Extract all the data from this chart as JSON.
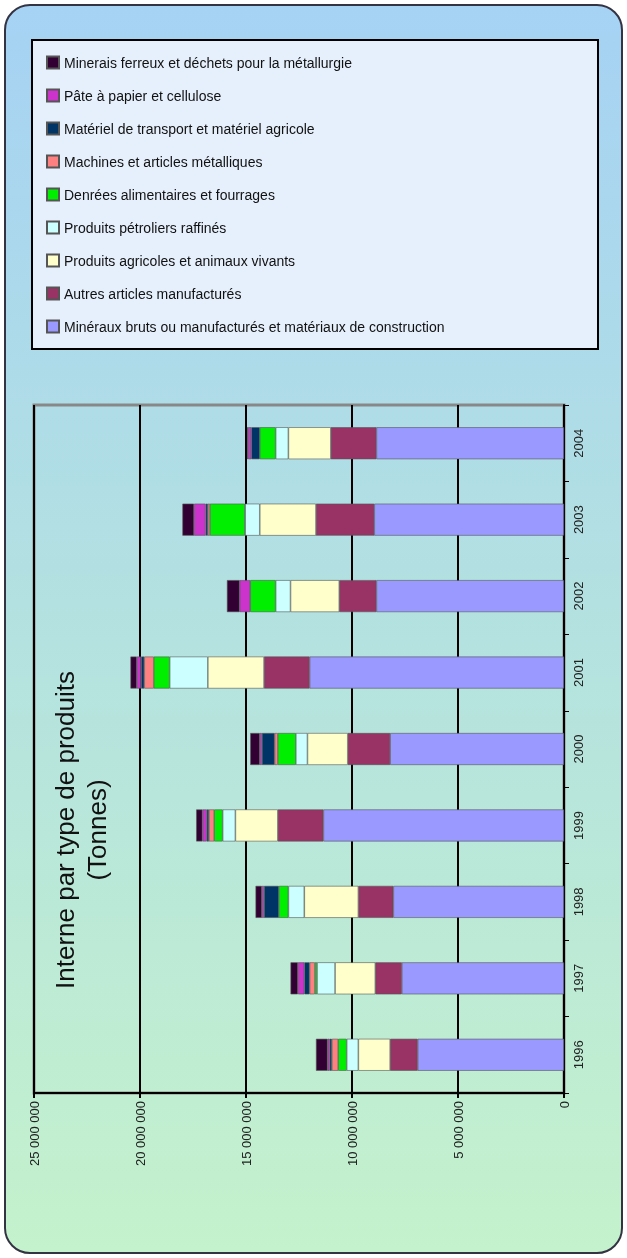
{
  "chart_data": {
    "type": "bar",
    "orientation": "horizontal",
    "title": "Interne par type de produits\n(Tonnes)",
    "stacked": true,
    "grid": "x",
    "legend": "top",
    "categories": [
      "2004",
      "2003",
      "2002",
      "2001",
      "2000",
      "1999",
      "1998",
      "1997",
      "1996"
    ],
    "xlim": [
      25000000,
      0
    ],
    "xticks": [
      {
        "value": 25000000,
        "label": "25 000 000"
      },
      {
        "value": 20000000,
        "label": "20 000 000"
      },
      {
        "value": 15000000,
        "label": "15 000 000"
      },
      {
        "value": 10000000,
        "label": "10 000 000"
      },
      {
        "value": 5000000,
        "label": "5 000 000"
      },
      0
    ],
    "series": [
      {
        "name": "Minéraux bruts ou manufacturés et matériaux de construction",
        "color": "#9999ff",
        "values": [
          8850000,
          8950000,
          8850000,
          12000000,
          8200000,
          11350000,
          8050000,
          7650000,
          6900000
        ]
      },
      {
        "name": "Autres articles manufacturés",
        "color": "#993366",
        "values": [
          2150000,
          2750000,
          1750000,
          2150000,
          2000000,
          2150000,
          1650000,
          1250000,
          1300000
        ]
      },
      {
        "name": "Produits agricoles et animaux vivants",
        "color": "#ffffcc",
        "values": [
          2000000,
          2650000,
          2300000,
          2650000,
          1900000,
          2000000,
          2550000,
          1900000,
          1500000
        ]
      },
      {
        "name": "Produits pétroliers raffinés",
        "color": "#ccffff",
        "values": [
          600000,
          700000,
          700000,
          1800000,
          550000,
          600000,
          750000,
          850000,
          550000
        ]
      },
      {
        "name": "Denrées alimentaires et fourrages",
        "color": "#00ee00",
        "values": [
          750000,
          1650000,
          1200000,
          750000,
          850000,
          400000,
          450000,
          100000,
          400000
        ]
      },
      {
        "name": "Machines et articles métalliques",
        "color": "#ff8080",
        "values": [
          0,
          100000,
          0,
          450000,
          150000,
          250000,
          0,
          250000,
          300000
        ]
      },
      {
        "name": "Matériel de transport et matériel agricole",
        "color": "#003366",
        "values": [
          400000,
          100000,
          0,
          150000,
          600000,
          100000,
          700000,
          250000,
          100000
        ]
      },
      {
        "name": "Pâte à papier et cellulose",
        "color": "#cc33cc",
        "values": [
          150000,
          550000,
          500000,
          200000,
          100000,
          200000,
          100000,
          300000,
          100000
        ]
      },
      {
        "name": "Minerais ferreux et déchets pour la métallurgie",
        "color": "#330033",
        "values": [
          50000,
          550000,
          600000,
          300000,
          450000,
          300000,
          300000,
          350000,
          550000
        ]
      }
    ]
  }
}
